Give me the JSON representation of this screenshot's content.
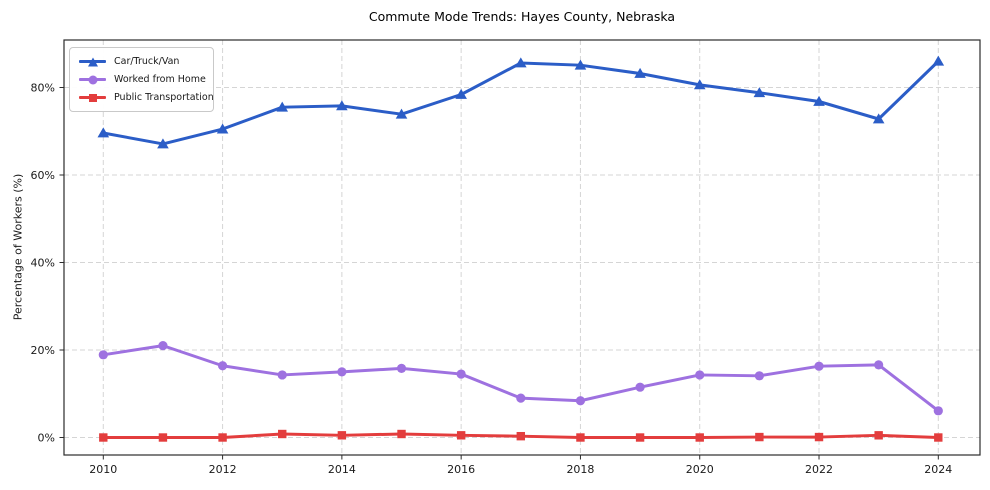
{
  "chart_data": {
    "type": "line",
    "title": "Commute Mode Trends: Hayes County, Nebraska",
    "xlabel": "",
    "ylabel": "Percentage of Workers (%)",
    "x": [
      2010,
      2011,
      2012,
      2013,
      2014,
      2015,
      2016,
      2017,
      2018,
      2019,
      2020,
      2021,
      2022,
      2023,
      2024
    ],
    "x_tick_labels": [
      "2010",
      "2012",
      "2014",
      "2016",
      "2018",
      "2020",
      "2022",
      "2024"
    ],
    "x_tick_years": [
      2010,
      2012,
      2014,
      2016,
      2018,
      2020,
      2022,
      2024
    ],
    "y_ticks": [
      0,
      20,
      40,
      60,
      80
    ],
    "y_tick_labels": [
      "0%",
      "20%",
      "40%",
      "60%",
      "80%"
    ],
    "ylim": [
      -4.0,
      90.9
    ],
    "xlim": [
      2009.3,
      2024.7
    ],
    "grid": true,
    "grid_style": "dashed",
    "legend_position": "upper-left",
    "series": [
      {
        "name": "Car/Truck/Van",
        "color": "#2b5dc7",
        "marker": "triangle",
        "values": [
          69.6,
          67.1,
          70.5,
          75.5,
          75.8,
          73.9,
          78.4,
          85.6,
          85.1,
          83.2,
          80.6,
          78.8,
          76.8,
          72.8,
          86.0
        ]
      },
      {
        "name": "Worked from Home",
        "color": "#9e71e0",
        "marker": "circle",
        "values": [
          18.9,
          21.0,
          16.4,
          14.3,
          15.0,
          15.8,
          14.5,
          9.0,
          8.4,
          11.5,
          14.3,
          14.1,
          16.3,
          16.6,
          6.1
        ]
      },
      {
        "name": "Public Transportation",
        "color": "#e33d3d",
        "marker": "square",
        "values": [
          0.0,
          0.0,
          0.0,
          0.8,
          0.5,
          0.8,
          0.5,
          0.3,
          0.0,
          0.0,
          0.0,
          0.1,
          0.1,
          0.5,
          0.0
        ]
      }
    ],
    "colors": {
      "grid": "#d5d5d5",
      "spine": "#2b2b2b",
      "tick_text": "#1a1a1a",
      "background": "#ffffff"
    }
  }
}
